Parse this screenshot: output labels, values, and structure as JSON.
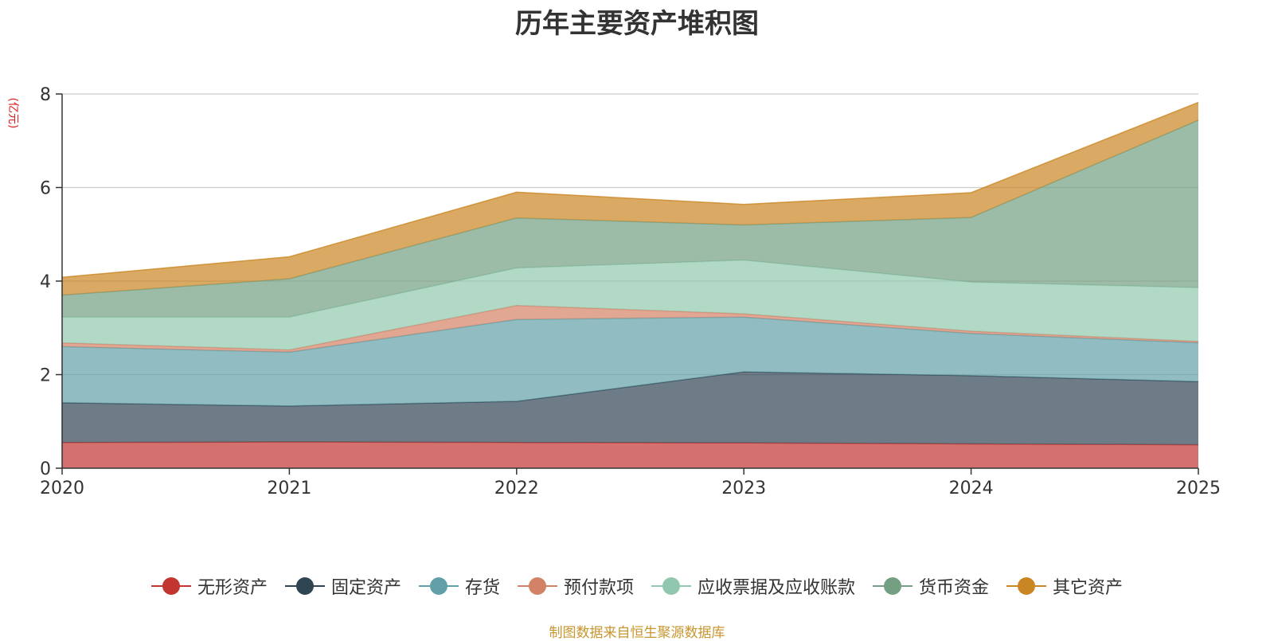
{
  "chart_data": {
    "type": "area",
    "stacked": true,
    "title": "历年主要资产堆积图",
    "ylabel": "(亿元)",
    "xlabel": "",
    "categories": [
      "2020",
      "2021",
      "2022",
      "2023",
      "2024",
      "2025"
    ],
    "ylim": [
      0,
      8
    ],
    "yticks": [
      0,
      2,
      4,
      6,
      8
    ],
    "grid": true,
    "legend_position": "bottom",
    "series": [
      {
        "name": "无形资产",
        "color": "#c23531",
        "values": [
          0.55,
          0.56,
          0.55,
          0.54,
          0.52,
          0.5
        ]
      },
      {
        "name": "固定资产",
        "color": "#2f4554",
        "values": [
          0.85,
          0.77,
          0.88,
          1.52,
          1.46,
          1.35
        ]
      },
      {
        "name": "存货",
        "color": "#61a0a8",
        "values": [
          1.2,
          1.15,
          1.75,
          1.17,
          0.9,
          0.83
        ]
      },
      {
        "name": "预付款项",
        "color": "#d48265",
        "values": [
          0.08,
          0.05,
          0.3,
          0.07,
          0.05,
          0.03
        ]
      },
      {
        "name": "应收票据及应收账款",
        "color": "#91c7ae",
        "values": [
          0.55,
          0.7,
          0.8,
          1.15,
          1.05,
          1.15
        ]
      },
      {
        "name": "货币资金",
        "color": "#749f83",
        "values": [
          0.47,
          0.82,
          1.07,
          0.75,
          1.38,
          3.58
        ]
      },
      {
        "name": "其它资产",
        "color": "#ca8622",
        "values": [
          0.38,
          0.47,
          0.55,
          0.44,
          0.53,
          0.38
        ]
      }
    ]
  },
  "footer": {
    "source": "制图数据来自恒生聚源数据库"
  }
}
